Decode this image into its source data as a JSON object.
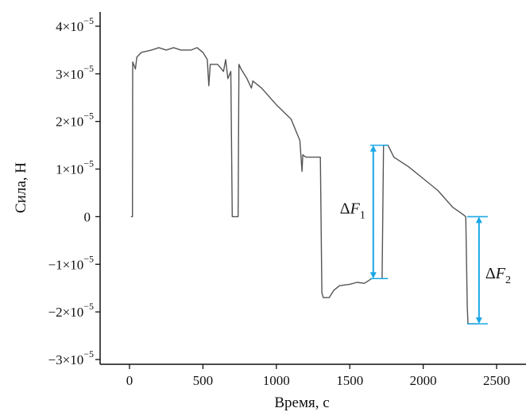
{
  "chart_data": {
    "type": "line",
    "title": "",
    "xlabel": "Время, с",
    "ylabel": "Сила, Н",
    "xlim": [
      -200,
      2700
    ],
    "ylim": [
      -3.1e-05,
      4.3e-05
    ],
    "grid": false,
    "legend": "none",
    "x_ticks": [
      0,
      500,
      1000,
      1500,
      2000,
      2500
    ],
    "x_tick_labels": [
      "0",
      "500",
      "1000",
      "1500",
      "2000",
      "2500"
    ],
    "y_ticks": [
      4e-05,
      3e-05,
      2e-05,
      1e-05,
      0,
      -1e-05,
      -2e-05,
      -3e-05
    ],
    "y_tick_labels": [
      {
        "mant": "4×10",
        "exp": "−5"
      },
      {
        "mant": "3×10",
        "exp": "−5"
      },
      {
        "mant": "2×10",
        "exp": "−5"
      },
      {
        "mant": "1×10",
        "exp": "−5"
      },
      {
        "mant": "0",
        "exp": ""
      },
      {
        "mant": "−1×10",
        "exp": "−5"
      },
      {
        "mant": "−2×10",
        "exp": "−5"
      },
      {
        "mant": "−3×10",
        "exp": "−5"
      }
    ],
    "series": [
      {
        "color": "#555555",
        "points": [
          [
            10,
            0
          ],
          [
            20,
            0
          ],
          [
            22,
            3.25e-05
          ],
          [
            40,
            3.1e-05
          ],
          [
            50,
            3.35e-05
          ],
          [
            80,
            3.45e-05
          ],
          [
            150,
            3.5e-05
          ],
          [
            200,
            3.55e-05
          ],
          [
            250,
            3.5e-05
          ],
          [
            300,
            3.55e-05
          ],
          [
            350,
            3.5e-05
          ],
          [
            420,
            3.5e-05
          ],
          [
            460,
            3.55e-05
          ],
          [
            500,
            3.45e-05
          ],
          [
            530,
            3.3e-05
          ],
          [
            540,
            2.75e-05
          ],
          [
            550,
            3.2e-05
          ],
          [
            600,
            3.2e-05
          ],
          [
            640,
            3.05e-05
          ],
          [
            655,
            3.3e-05
          ],
          [
            670,
            2.9e-05
          ],
          [
            690,
            3.05e-05
          ],
          [
            700,
            0
          ],
          [
            740,
            0
          ],
          [
            745,
            3.2e-05
          ],
          [
            760,
            3.1e-05
          ],
          [
            800,
            2.9e-05
          ],
          [
            830,
            2.7e-05
          ],
          [
            840,
            2.85e-05
          ],
          [
            900,
            2.7e-05
          ],
          [
            1000,
            2.35e-05
          ],
          [
            1100,
            2.05e-05
          ],
          [
            1160,
            1.6e-05
          ],
          [
            1175,
            9.5e-06
          ],
          [
            1180,
            1.3e-05
          ],
          [
            1200,
            1.25e-05
          ],
          [
            1300,
            1.25e-05
          ],
          [
            1310,
            -1.6e-05
          ],
          [
            1320,
            -1.7e-05
          ],
          [
            1360,
            -1.7e-05
          ],
          [
            1390,
            -1.55e-05
          ],
          [
            1430,
            -1.45e-05
          ],
          [
            1500,
            -1.42e-05
          ],
          [
            1550,
            -1.38e-05
          ],
          [
            1600,
            -1.4e-05
          ],
          [
            1650,
            -1.3e-05
          ],
          [
            1720,
            -1.3e-05
          ],
          [
            1730,
            1.5e-05
          ],
          [
            1760,
            1.5e-05
          ],
          [
            1800,
            1.25e-05
          ],
          [
            1900,
            1.05e-05
          ],
          [
            2000,
            8e-06
          ],
          [
            2100,
            5.5e-06
          ],
          [
            2200,
            2e-06
          ],
          [
            2270,
            5e-07
          ],
          [
            2290,
            0
          ],
          [
            2300,
            -1.9e-05
          ],
          [
            2305,
            -2.25e-05
          ],
          [
            2370,
            -2.25e-05
          ]
        ]
      }
    ],
    "annotations": [
      {
        "label": "ΔF",
        "sub": "1",
        "x": 1660,
        "y_top": 1.5e-05,
        "y_bottom": -1.3e-05,
        "cap_from": 1640,
        "cap_to": 1760,
        "color": "#1aa7e6"
      },
      {
        "label": "ΔF",
        "sub": "2",
        "x": 2380,
        "y_top": 0,
        "y_bottom": -2.25e-05,
        "cap_from": 2300,
        "cap_to": 2440,
        "color": "#1aa7e6"
      }
    ]
  }
}
